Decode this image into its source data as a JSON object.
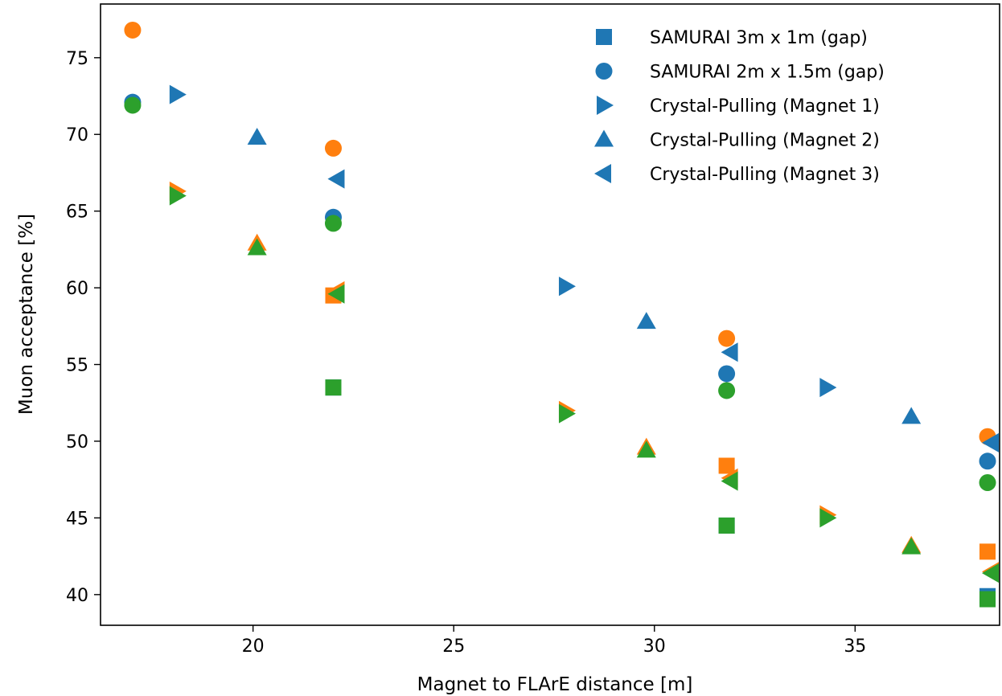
{
  "chart_data": {
    "type": "scatter",
    "title": "",
    "xlabel": "Magnet to FLArE distance [m]",
    "ylabel": "Muon acceptance [%]",
    "xlim": [
      16.2,
      38.6
    ],
    "ylim": [
      38.0,
      78.5
    ],
    "xticks": [
      20,
      25,
      30,
      35
    ],
    "yticks": [
      40,
      45,
      50,
      55,
      60,
      65,
      70,
      75
    ],
    "grid": false,
    "legend_position": "top-right",
    "colors": {
      "blue": "#1f77b4",
      "orange": "#ff7f0e",
      "green": "#2ca02c"
    },
    "series": [
      {
        "name": "SAMURAI 3m x 1m (gap)",
        "marker": "square",
        "points": [
          {
            "color": "blue",
            "x": 22.0,
            "y": 53.5
          },
          {
            "color": "orange",
            "x": 22.0,
            "y": 59.5
          },
          {
            "color": "green",
            "x": 22.0,
            "y": 53.5
          },
          {
            "color": "blue",
            "x": 31.8,
            "y": 44.5
          },
          {
            "color": "orange",
            "x": 31.8,
            "y": 48.4
          },
          {
            "color": "green",
            "x": 31.8,
            "y": 44.5
          },
          {
            "color": "blue",
            "x": 38.3,
            "y": 39.9
          },
          {
            "color": "orange",
            "x": 38.3,
            "y": 42.8
          },
          {
            "color": "green",
            "x": 38.3,
            "y": 39.7
          }
        ]
      },
      {
        "name": "SAMURAI 2m x 1.5m (gap)",
        "marker": "circle",
        "points": [
          {
            "color": "blue",
            "x": 17.0,
            "y": 72.1
          },
          {
            "color": "orange",
            "x": 17.0,
            "y": 76.8
          },
          {
            "color": "green",
            "x": 17.0,
            "y": 71.9
          },
          {
            "color": "blue",
            "x": 22.0,
            "y": 64.6
          },
          {
            "color": "orange",
            "x": 22.0,
            "y": 69.1
          },
          {
            "color": "green",
            "x": 22.0,
            "y": 64.2
          },
          {
            "color": "blue",
            "x": 31.8,
            "y": 54.4
          },
          {
            "color": "orange",
            "x": 31.8,
            "y": 56.7
          },
          {
            "color": "green",
            "x": 31.8,
            "y": 53.3
          },
          {
            "color": "blue",
            "x": 38.3,
            "y": 48.7
          },
          {
            "color": "orange",
            "x": 38.3,
            "y": 50.3
          },
          {
            "color": "green",
            "x": 38.3,
            "y": 47.3
          }
        ]
      },
      {
        "name": "Crystal-Pulling (Magnet 1)",
        "marker": "triangle-right",
        "points": [
          {
            "color": "blue",
            "x": 18.1,
            "y": 72.6
          },
          {
            "color": "orange",
            "x": 18.1,
            "y": 66.3
          },
          {
            "color": "green",
            "x": 18.1,
            "y": 66.0
          },
          {
            "color": "blue",
            "x": 27.8,
            "y": 60.1
          },
          {
            "color": "orange",
            "x": 27.8,
            "y": 52.0
          },
          {
            "color": "green",
            "x": 27.8,
            "y": 51.8
          },
          {
            "color": "blue",
            "x": 34.3,
            "y": 53.5
          },
          {
            "color": "orange",
            "x": 34.3,
            "y": 45.2
          },
          {
            "color": "green",
            "x": 34.3,
            "y": 45.0
          }
        ]
      },
      {
        "name": "Crystal-Pulling (Magnet 2)",
        "marker": "triangle-up",
        "points": [
          {
            "color": "blue",
            "x": 20.1,
            "y": 69.8
          },
          {
            "color": "orange",
            "x": 20.1,
            "y": 62.9
          },
          {
            "color": "green",
            "x": 20.1,
            "y": 62.6
          },
          {
            "color": "blue",
            "x": 29.8,
            "y": 57.8
          },
          {
            "color": "orange",
            "x": 29.8,
            "y": 49.6
          },
          {
            "color": "green",
            "x": 29.8,
            "y": 49.4
          },
          {
            "color": "blue",
            "x": 36.4,
            "y": 51.6
          },
          {
            "color": "orange",
            "x": 36.4,
            "y": 43.2
          },
          {
            "color": "green",
            "x": 36.4,
            "y": 43.1
          }
        ]
      },
      {
        "name": "Crystal-Pulling (Magnet 3)",
        "marker": "triangle-left",
        "points": [
          {
            "color": "blue",
            "x": 22.1,
            "y": 67.1
          },
          {
            "color": "orange",
            "x": 22.1,
            "y": 59.8
          },
          {
            "color": "green",
            "x": 22.1,
            "y": 59.6
          },
          {
            "color": "blue",
            "x": 31.9,
            "y": 55.8
          },
          {
            "color": "orange",
            "x": 31.9,
            "y": 47.6
          },
          {
            "color": "green",
            "x": 31.9,
            "y": 47.4
          },
          {
            "color": "blue",
            "x": 38.4,
            "y": 49.9
          },
          {
            "color": "orange",
            "x": 38.4,
            "y": 41.5
          },
          {
            "color": "green",
            "x": 38.4,
            "y": 41.4
          }
        ]
      }
    ]
  }
}
